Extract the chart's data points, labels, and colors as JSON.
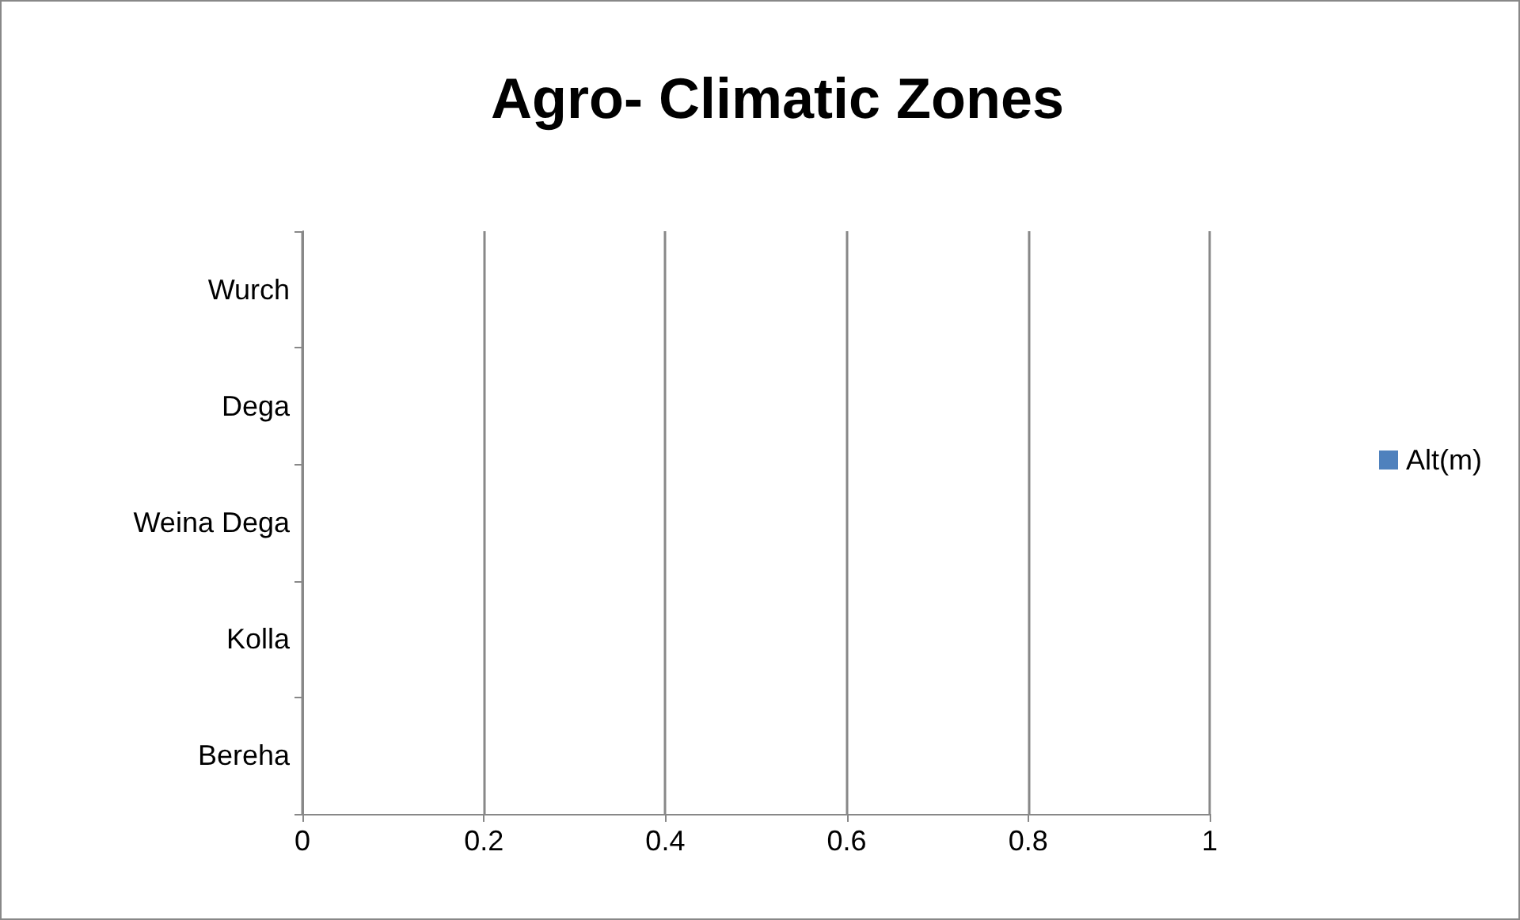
{
  "chart_data": {
    "type": "bar",
    "orientation": "horizontal",
    "title": "Agro- Climatic Zones",
    "categories": [
      "Wurch",
      "Dega",
      "Weina Dega",
      "Kolla",
      "Bereha"
    ],
    "series": [
      {
        "name": "Alt(m)",
        "color": "#4f81bd",
        "values": [
          0,
          0,
          0,
          0,
          0
        ]
      }
    ],
    "xlim": [
      0,
      1
    ],
    "xticks": [
      0,
      0.2,
      0.4,
      0.6,
      0.8,
      1
    ],
    "grid": "x",
    "legend": "right"
  }
}
